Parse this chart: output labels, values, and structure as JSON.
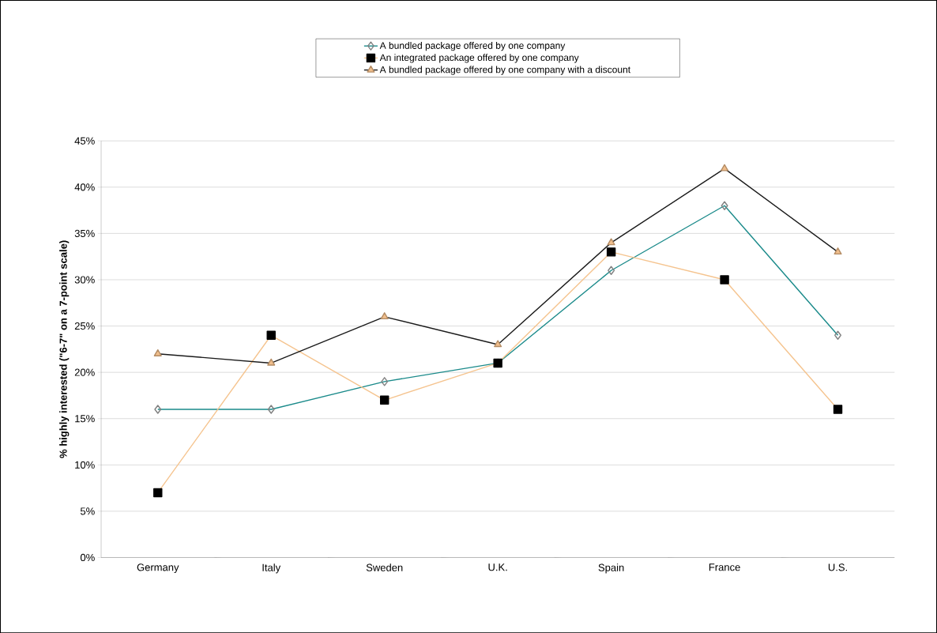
{
  "chart_data": {
    "type": "line",
    "ylabel": "% highly interested (\"6-7\" on a 7-point scale)",
    "categories": [
      "Germany",
      "Italy",
      "Sweden",
      "U.K.",
      "Spain",
      "France",
      "U.S."
    ],
    "series": [
      {
        "name": "A bundled package offered by one company",
        "color": "#1a8a8a",
        "marker": "diamond",
        "values": [
          16,
          16,
          19,
          21,
          31,
          38,
          24
        ]
      },
      {
        "name": "An integrated package offered by one company",
        "color": "#f5c48f",
        "marker": "square",
        "values": [
          7,
          24,
          17,
          21,
          33,
          30,
          16
        ]
      },
      {
        "name": "A bundled package offered by one company with a discount",
        "color": "#1a1a1a",
        "marker": "triangle",
        "values": [
          22,
          21,
          26,
          23,
          34,
          42,
          33
        ]
      }
    ],
    "ylim": [
      0,
      45
    ],
    "yticks": [
      {
        "value": 0,
        "label": "0%"
      },
      {
        "value": 5,
        "label": "5%"
      },
      {
        "value": 10,
        "label": "10%"
      },
      {
        "value": 15,
        "label": "15%"
      },
      {
        "value": 20,
        "label": "20%"
      },
      {
        "value": 25,
        "label": "25%"
      },
      {
        "value": 30,
        "label": "30%"
      },
      {
        "value": 35,
        "label": "35%"
      },
      {
        "value": 40,
        "label": "40%"
      },
      {
        "value": 45,
        "label": "45%"
      }
    ],
    "grid": "y",
    "legend": "top",
    "line_style": "solid"
  }
}
